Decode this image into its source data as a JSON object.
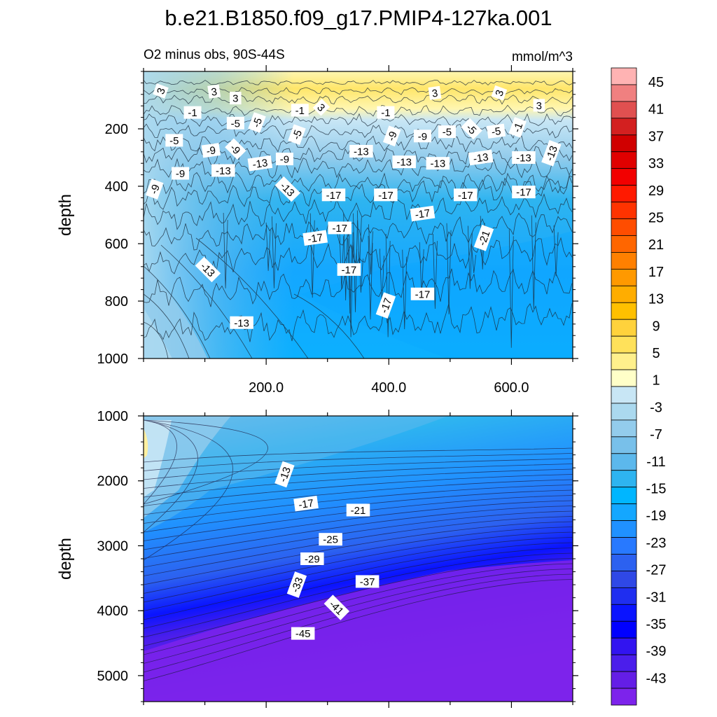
{
  "title": "b.e21.B1850.f09_g17.PMIP4-127ka.001",
  "colorbar": {
    "colors": [
      "#ffb3b3",
      "#f08080",
      "#e05050",
      "#d32020",
      "#d00000",
      "#e00000",
      "#f20000",
      "#ff1a00",
      "#ff3300",
      "#ff4d00",
      "#ff6600",
      "#ff8000",
      "#ff9900",
      "#ffad00",
      "#ffc000",
      "#ffd23c",
      "#ffe15a",
      "#fff08c",
      "#ffffc8",
      "#c8e6f5",
      "#abd9ef",
      "#93ccec",
      "#78c0ea",
      "#5cb8ec",
      "#2eb4f0",
      "#00b6ff",
      "#14a7ff",
      "#2091ff",
      "#2879ff",
      "#2c61f0",
      "#2f48e6",
      "#1f2ef0",
      "#0a14ff",
      "#0000ff",
      "#3214f0",
      "#4b1eeb",
      "#641ee6",
      "#7d23eb"
    ],
    "labels": [
      "45",
      "41",
      "37",
      "33",
      "29",
      "25",
      "21",
      "17",
      "13",
      "9",
      "5",
      "1",
      "-3",
      "-7",
      "-11",
      "-15",
      "-19",
      "-23",
      "-27",
      "-31",
      "-35",
      "-39",
      "-43"
    ]
  },
  "chart_data": [
    {
      "type": "heatmap",
      "subtitle_left": "O2 minus obs, 90S-44S",
      "subtitle_right": "mmol/m^3",
      "ylabel": "depth",
      "ylim": [
        1000,
        0
      ],
      "xlim": [
        0,
        700
      ],
      "yticks": [
        "200",
        "400",
        "600",
        "800",
        "1000"
      ],
      "ytick_values": [
        200,
        400,
        600,
        800,
        1000
      ],
      "xticks": [
        "200.0",
        "400.0",
        "600.0"
      ],
      "xtick_values": [
        200,
        400,
        600
      ],
      "contour_labels": [
        {
          "text": "3",
          "x": 28,
          "y": 68
        },
        {
          "text": "3",
          "x": 115,
          "y": 70
        },
        {
          "text": "3",
          "x": 150,
          "y": 93
        },
        {
          "text": "-1",
          "x": 80,
          "y": 143
        },
        {
          "text": "-5",
          "x": 150,
          "y": 180
        },
        {
          "text": "-5",
          "x": 185,
          "y": 178
        },
        {
          "text": "-1",
          "x": 255,
          "y": 135
        },
        {
          "text": "3",
          "x": 290,
          "y": 125
        },
        {
          "text": "-1",
          "x": 395,
          "y": 143
        },
        {
          "text": "3",
          "x": 475,
          "y": 75
        },
        {
          "text": "3",
          "x": 580,
          "y": 75
        },
        {
          "text": "3",
          "x": 645,
          "y": 118
        },
        {
          "text": "-5",
          "x": 50,
          "y": 240
        },
        {
          "text": "-9",
          "x": 110,
          "y": 275
        },
        {
          "text": "-9",
          "x": 150,
          "y": 270
        },
        {
          "text": "-5",
          "x": 250,
          "y": 220
        },
        {
          "text": "-9",
          "x": 230,
          "y": 305
        },
        {
          "text": "-13",
          "x": 190,
          "y": 320
        },
        {
          "text": "-13",
          "x": 130,
          "y": 345
        },
        {
          "text": "-9",
          "x": 60,
          "y": 355
        },
        {
          "text": "-9",
          "x": 18,
          "y": 410
        },
        {
          "text": "-13",
          "x": 235,
          "y": 410
        },
        {
          "text": "-17",
          "x": 310,
          "y": 430
        },
        {
          "text": "-17",
          "x": 320,
          "y": 545
        },
        {
          "text": "-13",
          "x": 355,
          "y": 278
        },
        {
          "text": "-9",
          "x": 405,
          "y": 225
        },
        {
          "text": "-9",
          "x": 455,
          "y": 225
        },
        {
          "text": "-5",
          "x": 495,
          "y": 210
        },
        {
          "text": "-5",
          "x": 535,
          "y": 200
        },
        {
          "text": "-5",
          "x": 575,
          "y": 208
        },
        {
          "text": "-1",
          "x": 610,
          "y": 195
        },
        {
          "text": "-13",
          "x": 425,
          "y": 315
        },
        {
          "text": "-13",
          "x": 480,
          "y": 320
        },
        {
          "text": "-13",
          "x": 550,
          "y": 300
        },
        {
          "text": "-13",
          "x": 620,
          "y": 300
        },
        {
          "text": "-13",
          "x": 665,
          "y": 285
        },
        {
          "text": "-17",
          "x": 395,
          "y": 430
        },
        {
          "text": "-17",
          "x": 455,
          "y": 495
        },
        {
          "text": "-17",
          "x": 525,
          "y": 430
        },
        {
          "text": "-17",
          "x": 620,
          "y": 420
        },
        {
          "text": "-21",
          "x": 555,
          "y": 580
        },
        {
          "text": "-17",
          "x": 280,
          "y": 580
        },
        {
          "text": "-13",
          "x": 105,
          "y": 690
        },
        {
          "text": "-17",
          "x": 335,
          "y": 690
        },
        {
          "text": "-17",
          "x": 455,
          "y": 775
        },
        {
          "text": "-17",
          "x": 395,
          "y": 815
        },
        {
          "text": "-13",
          "x": 160,
          "y": 875
        }
      ]
    },
    {
      "type": "heatmap",
      "ylabel": "depth",
      "ylim": [
        5400,
        1000
      ],
      "xlim": [
        0,
        700
      ],
      "yticks": [
        "1000",
        "2000",
        "3000",
        "4000",
        "5000"
      ],
      "ytick_values": [
        1000,
        2000,
        3000,
        4000,
        5000
      ],
      "contour_labels": [
        {
          "text": "-13",
          "x": 230,
          "y": 1900
        },
        {
          "text": "-17",
          "x": 265,
          "y": 2350
        },
        {
          "text": "-21",
          "x": 350,
          "y": 2450
        },
        {
          "text": "-25",
          "x": 305,
          "y": 2900
        },
        {
          "text": "-29",
          "x": 275,
          "y": 3200
        },
        {
          "text": "-33",
          "x": 250,
          "y": 3600
        },
        {
          "text": "-37",
          "x": 365,
          "y": 3550
        },
        {
          "text": "-41",
          "x": 315,
          "y": 3950
        },
        {
          "text": "-45",
          "x": 260,
          "y": 4350
        }
      ]
    }
  ]
}
